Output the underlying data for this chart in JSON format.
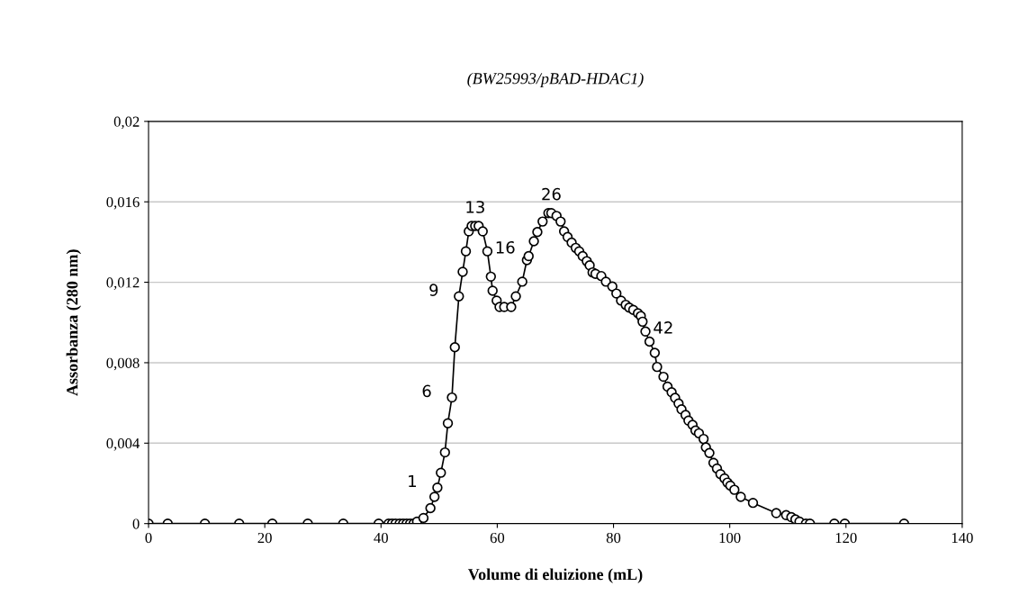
{
  "chart_data": {
    "type": "line",
    "title": "(BW25993/pBAD-HDAC1)",
    "xlabel": "Volume di eluizione (mL)",
    "ylabel": "Assorbanza (280 nm)",
    "marker": "circle",
    "line_style": "solid",
    "grid": "y",
    "xlim": [
      0,
      140
    ],
    "xticks": [
      0,
      20,
      40,
      60,
      80,
      100,
      120,
      140
    ],
    "ylim": [
      0,
      0.02
    ],
    "yticks": [
      {
        "value": 0,
        "label": "0"
      },
      {
        "value": 0.004,
        "label": "0,004"
      },
      {
        "value": 0.008,
        "label": "0,008"
      },
      {
        "value": 0.012,
        "label": "0,012"
      },
      {
        "value": 0.016,
        "label": "0,016"
      },
      {
        "value": 0.02,
        "label": "0,02"
      }
    ],
    "series": [
      {
        "color": "#000000",
        "x": [
          0,
          3.3,
          9.7,
          15.6,
          21.3,
          27.4,
          33.5,
          39.6,
          41.3,
          41.9,
          42.5,
          43.2,
          43.8,
          44.4,
          45.0,
          45.6,
          46.2,
          47.3,
          48.5,
          49.2,
          49.7,
          50.3,
          51.0,
          51.5,
          52.2,
          52.7,
          53.4,
          54.05,
          54.6,
          55.1,
          55.6,
          56.2,
          56.8,
          57.5,
          58.3,
          58.9,
          59.2,
          59.9,
          60.4,
          61.2,
          62.4,
          63.2,
          64.3,
          65.1,
          65.4,
          66.3,
          66.9,
          67.8,
          68.8,
          69.3,
          70.2,
          70.9,
          71.5,
          72.1,
          72.8,
          73.5,
          74.1,
          74.7,
          75.4,
          75.9,
          76.4,
          76.9,
          77.9,
          78.7,
          79.8,
          80.5,
          81.3,
          82.1,
          82.7,
          83.4,
          84.2,
          84.7,
          85.0,
          85.5,
          86.2,
          87.1,
          87.5,
          88.6,
          89.3,
          90.0,
          90.6,
          91.2,
          91.7,
          92.4,
          92.9,
          93.6,
          94.1,
          94.7,
          95.5,
          95.9,
          96.5,
          97.2,
          97.8,
          98.4,
          99.1,
          99.6,
          100.1,
          100.8,
          101.9,
          104.0,
          108.0,
          109.7,
          110.6,
          111.3,
          112.0,
          113.1,
          113.8,
          118.0,
          119.8,
          130.0
        ],
        "values": [
          0,
          0,
          0,
          0,
          0,
          0,
          0,
          0,
          0,
          0,
          0,
          0,
          0,
          0,
          0,
          0,
          0.0001,
          0.00028,
          0.00077,
          0.00133,
          0.00179,
          0.00253,
          0.00354,
          0.00499,
          0.00627,
          0.00877,
          0.0113,
          0.01252,
          0.01354,
          0.01453,
          0.0148,
          0.0148,
          0.0148,
          0.01453,
          0.01354,
          0.01228,
          0.01158,
          0.01109,
          0.01077,
          0.01077,
          0.01077,
          0.0113,
          0.01203,
          0.0131,
          0.0133,
          0.01404,
          0.0145,
          0.01502,
          0.01544,
          0.01544,
          0.0153,
          0.01502,
          0.01453,
          0.01425,
          0.01397,
          0.01371,
          0.01354,
          0.0133,
          0.01305,
          0.01284,
          0.01249,
          0.01242,
          0.01231,
          0.01203,
          0.01179,
          0.01144,
          0.01109,
          0.01088,
          0.01074,
          0.01063,
          0.01046,
          0.01032,
          0.01004,
          0.00955,
          0.00905,
          0.00849,
          0.00779,
          0.0073,
          0.00681,
          0.00653,
          0.00625,
          0.00597,
          0.00568,
          0.0054,
          0.00512,
          0.00491,
          0.00463,
          0.00449,
          0.00421,
          0.00379,
          0.00351,
          0.00302,
          0.00274,
          0.00246,
          0.00225,
          0.00204,
          0.00189,
          0.00168,
          0.00133,
          0.00103,
          0.00052,
          0.00042,
          0.00032,
          0.00021,
          0.0001,
          0,
          0,
          0,
          0,
          0
        ]
      }
    ],
    "annotations": [
      {
        "text": "1",
        "x": 49.7,
        "y": 0.00179
      },
      {
        "text": "6",
        "x": 52.2,
        "y": 0.00627
      },
      {
        "text": "9",
        "x": 53.4,
        "y": 0.0113
      },
      {
        "text": "13",
        "x": 56.2,
        "y": 0.0148
      },
      {
        "text": "16",
        "x": 58.3,
        "y": 0.01354
      },
      {
        "text": "26",
        "x": 69.3,
        "y": 0.01544
      },
      {
        "text": "42",
        "x": 85.5,
        "y": 0.00955
      }
    ]
  }
}
